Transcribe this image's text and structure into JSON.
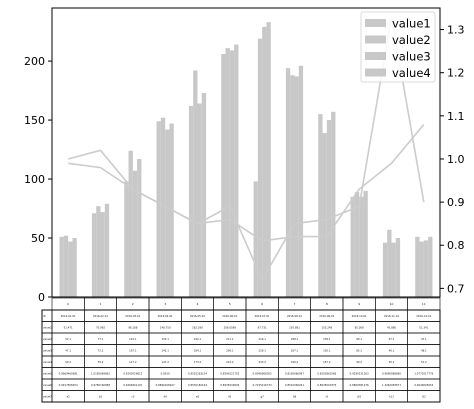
{
  "chart_data": {
    "type": "bar",
    "categories": [
      "0",
      "1",
      "2",
      "3",
      "4",
      "5",
      "6",
      "7",
      "8",
      "9",
      "10",
      "11"
    ],
    "ylim": [
      0,
      245
    ],
    "y2lim": [
      0.68,
      1.35
    ],
    "yticks": [
      0,
      50,
      100,
      150,
      200
    ],
    "y2ticks": [
      0.7,
      0.8,
      0.9,
      1.0,
      1.1,
      1.2,
      1.3
    ],
    "legend_position": "top-right",
    "grid": false,
    "bar_series": [
      {
        "name": "value1",
        "values": [
          51,
          71,
          98,
          149,
          162,
          206,
          98,
          194,
          155,
          85,
          46,
          51
        ]
      },
      {
        "name": "value2",
        "values": [
          52,
          77,
          124,
          152,
          192,
          211,
          219,
          188,
          139,
          89,
          57,
          47
        ]
      },
      {
        "name": "value3",
        "values": [
          47,
          72,
          107,
          142,
          164,
          209,
          229,
          187,
          150,
          85,
          46,
          48
        ]
      },
      {
        "name": "value4",
        "values": [
          50,
          79,
          117,
          147,
          173,
          214,
          233,
          196,
          157,
          90,
          50,
          51
        ]
      }
    ],
    "line_series": [
      {
        "values": [
          1.0,
          1.02,
          0.93,
          0.89,
          0.85,
          0.86,
          0.81,
          0.82,
          0.82,
          0.93,
          0.99,
          1.08
        ]
      },
      {
        "values": [
          0.99,
          0.98,
          0.93,
          0.89,
          0.85,
          0.89,
          0.72,
          0.85,
          0.86,
          0.89,
          1.33,
          0.9
        ]
      }
    ],
    "table": {
      "column_headers": [
        "0",
        "1",
        "2",
        "3",
        "4",
        "5",
        "6",
        "7",
        "8",
        "9",
        "10",
        "11"
      ],
      "row_labels": [
        "dt",
        "value1",
        "value2",
        "value3",
        "value4",
        "value5",
        "value6",
        "value7"
      ],
      "rows": [
        [
          "2016-01-01",
          "2016-02-01",
          "2016-03-01",
          "2016-04-01",
          "2016-05-01",
          "2016-06-01",
          "2016-07-01",
          "2016-08-01",
          "2016-09-01",
          "2016-10-01",
          "2016-11-01",
          "2016-12-01"
        ],
        [
          "51.471",
          "70.992",
          "98.188",
          "148.750",
          "162.290",
          "206.0089",
          "97.731",
          "193.881",
          "155.248",
          "85.009",
          "45.880",
          "51.341"
        ],
        [
          "52.1",
          "77.1",
          "124.1",
          "152.1",
          "192.1",
          "211.1",
          "219.1",
          "188.1",
          "139.1",
          "89.1",
          "57.1",
          "47.1"
        ],
        [
          "47.1",
          "72.1",
          "107.1",
          "142.1",
          "164.1",
          "209.1",
          "229.1",
          "187.1",
          "150.1",
          "85.1",
          "46.1",
          "48.1"
        ],
        [
          "50.2",
          "79.2",
          "117.2",
          "147.2",
          "173.2",
          "214.2",
          "233.2",
          "196.2",
          "157.2",
          "90.2",
          "50.2",
          "51.2"
        ],
        [
          "0.9969460691",
          "1.0185669862",
          "0.9293929612",
          "0.8919",
          "0.8525263154",
          "0.8599121753",
          "0.8096968302",
          "0.8195666997",
          "0.8203862566",
          "0.9290231263",
          "0.9890888880",
          "1.0772017778"
        ],
        [
          "0.9917658254",
          "0.9780160988",
          "0.9264801191",
          "0.8896108207",
          "0.8530182164",
          "0.8935939093",
          "0.7195216733",
          "0.8510066261",
          "0.8638201875",
          "0.8869381276",
          "1.3262083677",
          "0.9040695053"
        ],
        [
          "a1",
          "b2",
          "c3",
          "d4",
          "e5",
          "f6",
          "g7",
          "h8",
          "i9",
          "j10",
          "k11",
          "l12"
        ]
      ]
    }
  },
  "colors": {
    "bar": "#c8c8c8",
    "line": "#cccccc",
    "axis": "#000000",
    "table_border": "#000000"
  }
}
